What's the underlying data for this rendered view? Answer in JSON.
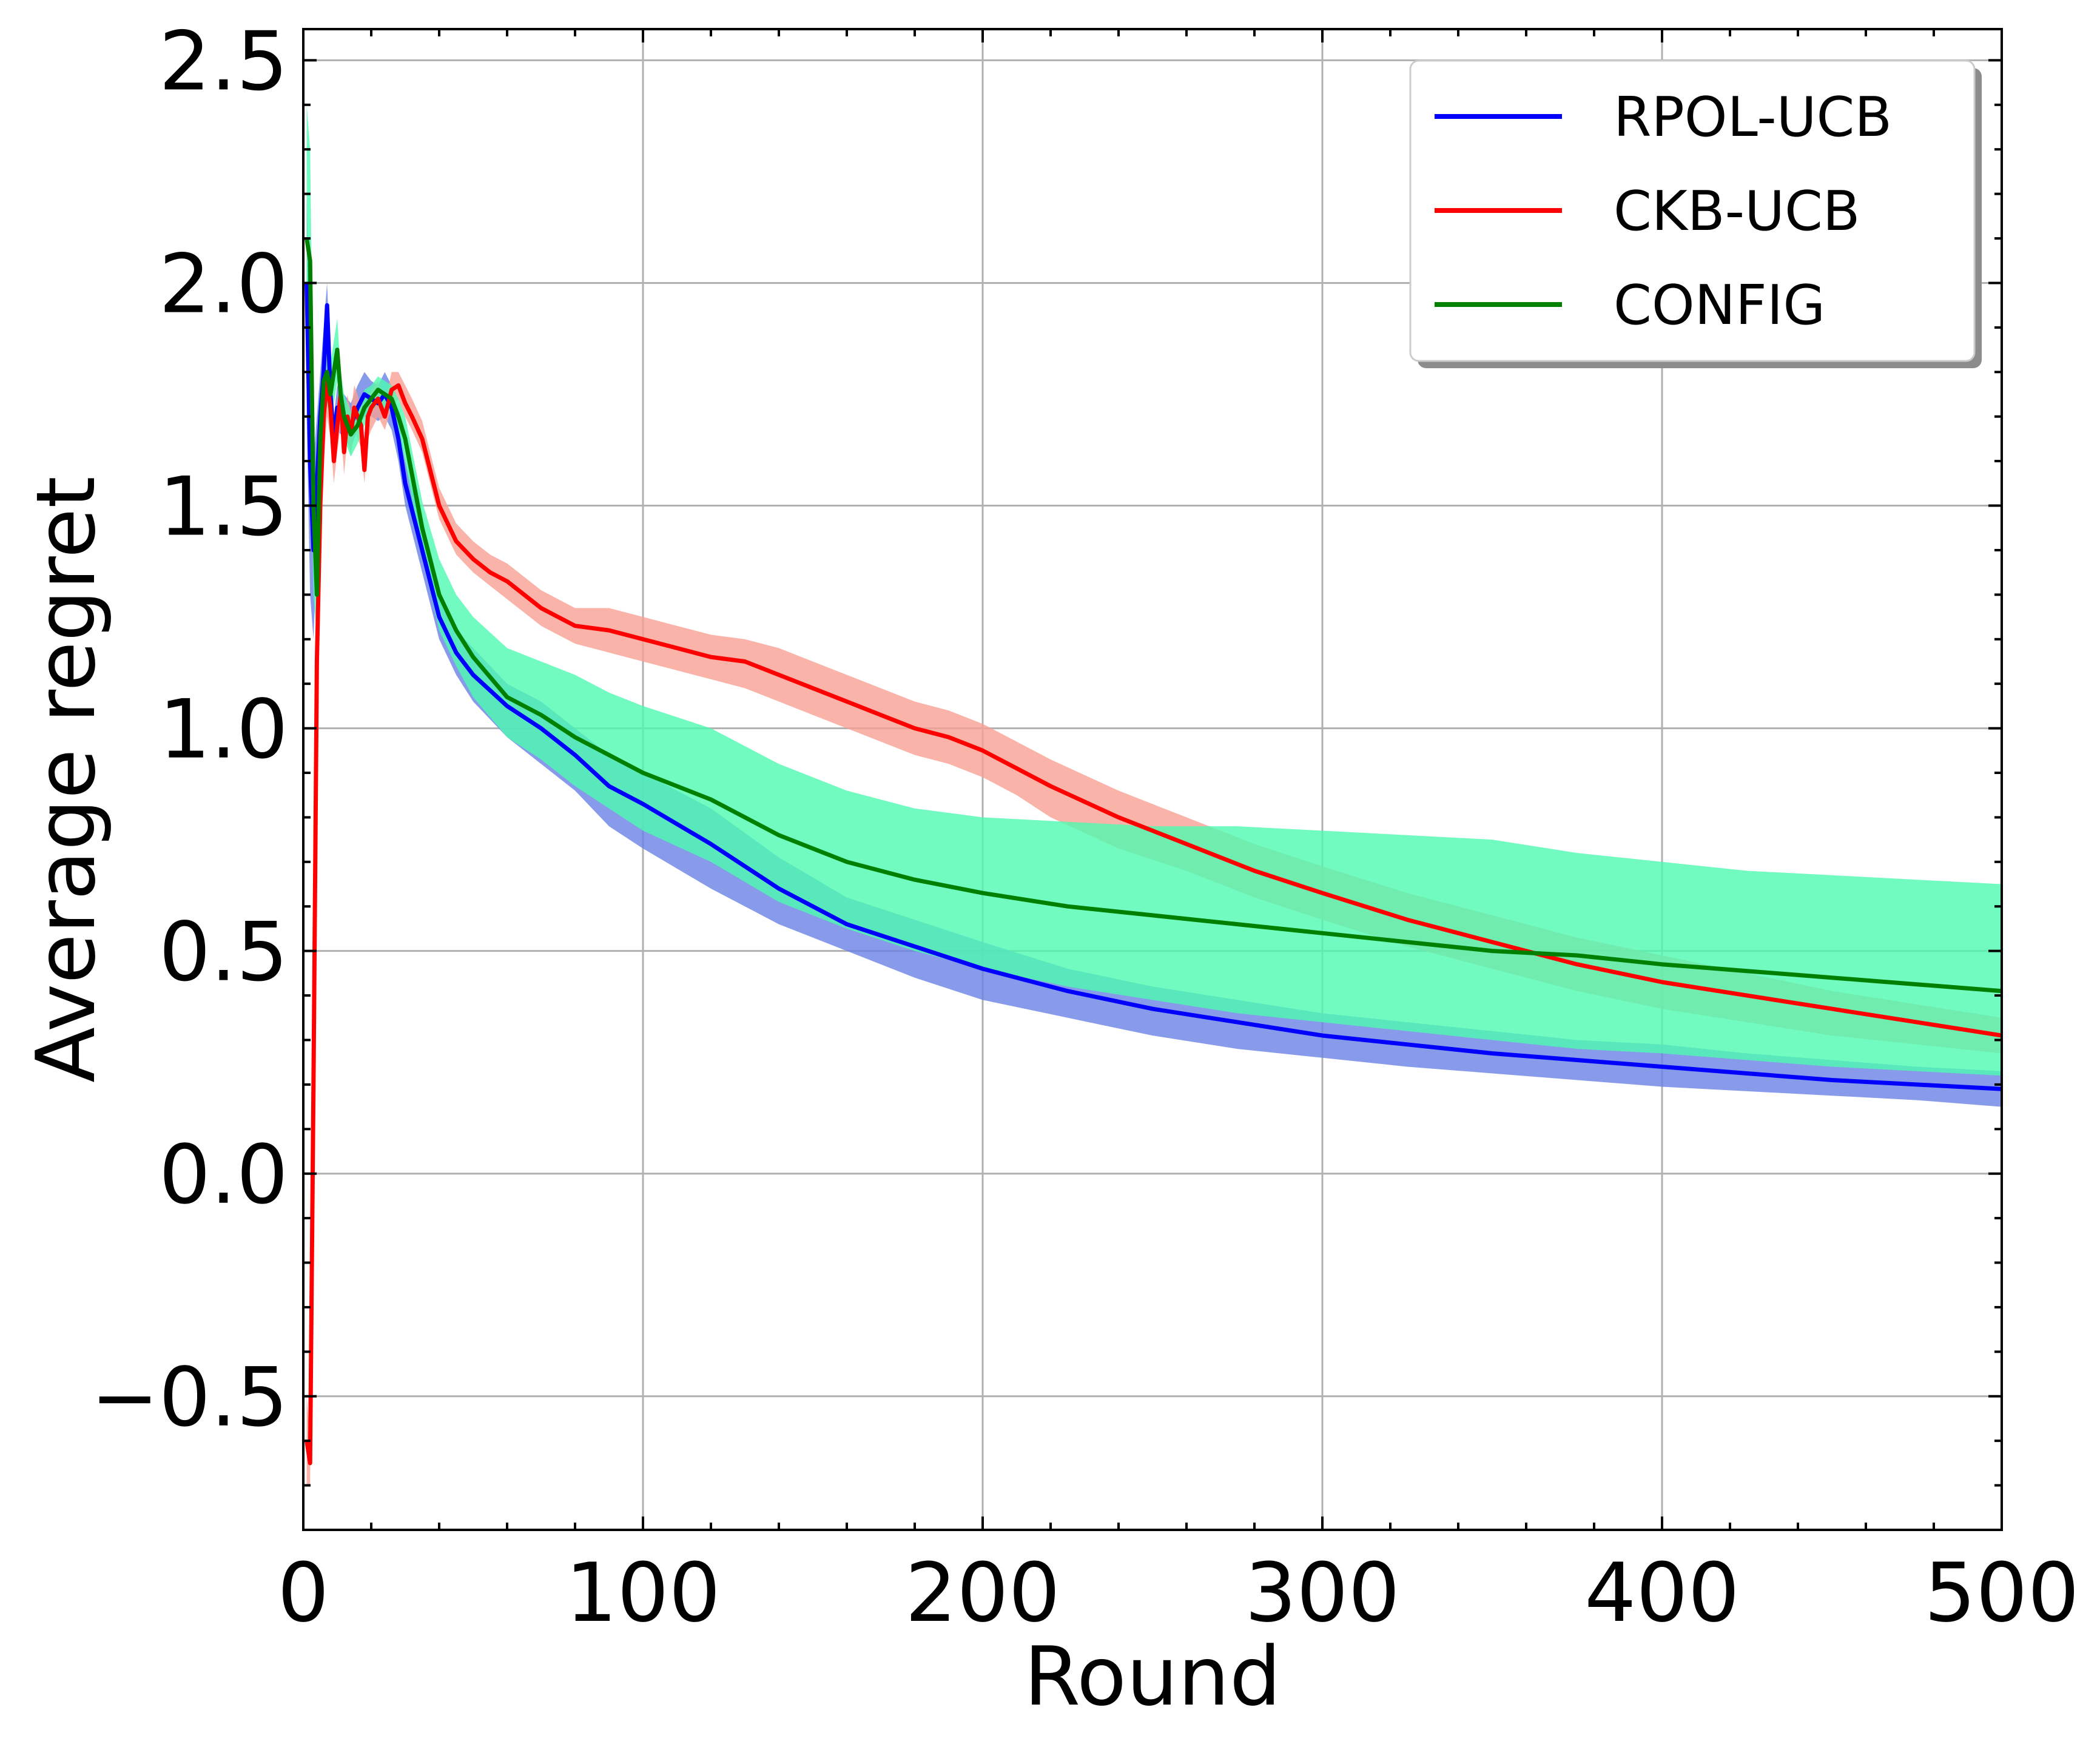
{
  "chart_data": {
    "type": "line",
    "title": "",
    "xlabel": "Round",
    "ylabel": "Average regret",
    "xlim": [
      0,
      500
    ],
    "ylim": [
      -0.8,
      2.57
    ],
    "xticks": [
      0,
      100,
      200,
      300,
      400,
      500
    ],
    "xtick_labels": [
      "0",
      "100",
      "200",
      "300",
      "400",
      "500"
    ],
    "yticks": [
      -0.5,
      0.0,
      0.5,
      1.0,
      1.5,
      2.0,
      2.5
    ],
    "ytick_labels": [
      "−0.5",
      "0.0",
      "0.5",
      "1.0",
      "1.5",
      "2.0",
      "2.5"
    ],
    "grid": true,
    "legend_position": "top-right",
    "series": [
      {
        "name": "RPOL-UCB",
        "color": "#0000ff",
        "band_color": "#6a82e6",
        "x": [
          1,
          2,
          3,
          4,
          5,
          6,
          7,
          8,
          9,
          10,
          12,
          14,
          16,
          18,
          20,
          22,
          24,
          26,
          28,
          30,
          35,
          40,
          45,
          50,
          60,
          70,
          80,
          90,
          100,
          120,
          140,
          160,
          180,
          200,
          225,
          250,
          275,
          300,
          325,
          350,
          375,
          400,
          425,
          450,
          475,
          500
        ],
        "y": [
          2.0,
          1.6,
          1.4,
          1.55,
          1.7,
          1.8,
          1.95,
          1.75,
          1.65,
          1.72,
          1.7,
          1.68,
          1.72,
          1.75,
          1.74,
          1.73,
          1.75,
          1.72,
          1.65,
          1.55,
          1.4,
          1.25,
          1.17,
          1.12,
          1.05,
          1.0,
          0.94,
          0.87,
          0.83,
          0.74,
          0.64,
          0.56,
          0.51,
          0.46,
          0.41,
          0.37,
          0.34,
          0.31,
          0.29,
          0.27,
          0.255,
          0.24,
          0.225,
          0.21,
          0.2,
          0.19
        ],
        "lower": [
          1.7,
          1.3,
          1.2,
          1.4,
          1.6,
          1.7,
          1.85,
          1.68,
          1.6,
          1.67,
          1.65,
          1.63,
          1.67,
          1.7,
          1.7,
          1.69,
          1.7,
          1.67,
          1.6,
          1.5,
          1.35,
          1.2,
          1.12,
          1.06,
          0.98,
          0.92,
          0.86,
          0.78,
          0.73,
          0.64,
          0.56,
          0.5,
          0.44,
          0.39,
          0.35,
          0.31,
          0.28,
          0.26,
          0.24,
          0.225,
          0.21,
          0.195,
          0.185,
          0.175,
          0.165,
          0.15
        ],
        "upper": [
          2.2,
          1.9,
          1.6,
          1.7,
          1.8,
          1.9,
          2.0,
          1.82,
          1.7,
          1.77,
          1.75,
          1.73,
          1.77,
          1.8,
          1.78,
          1.77,
          1.8,
          1.77,
          1.7,
          1.6,
          1.45,
          1.3,
          1.22,
          1.18,
          1.1,
          1.06,
          1.0,
          0.94,
          0.9,
          0.82,
          0.71,
          0.62,
          0.57,
          0.52,
          0.46,
          0.42,
          0.39,
          0.36,
          0.34,
          0.32,
          0.3,
          0.29,
          0.27,
          0.255,
          0.24,
          0.23
        ]
      },
      {
        "name": "CKB-UCB",
        "color": "#ff0000",
        "band_color": "#f9a094",
        "x": [
          1,
          2,
          3,
          4,
          5,
          6,
          7,
          8,
          9,
          10,
          11,
          12,
          13,
          14,
          15,
          16,
          17,
          18,
          19,
          20,
          22,
          24,
          26,
          28,
          30,
          32,
          35,
          40,
          45,
          50,
          55,
          60,
          70,
          80,
          90,
          100,
          110,
          120,
          130,
          140,
          150,
          160,
          170,
          180,
          190,
          200,
          210,
          220,
          240,
          260,
          280,
          300,
          325,
          350,
          375,
          400,
          425,
          450,
          475,
          500
        ],
        "y": [
          -0.6,
          -0.65,
          0.2,
          1.15,
          1.5,
          1.7,
          1.78,
          1.72,
          1.6,
          1.68,
          1.75,
          1.62,
          1.7,
          1.66,
          1.72,
          1.7,
          1.68,
          1.58,
          1.7,
          1.72,
          1.74,
          1.7,
          1.76,
          1.77,
          1.73,
          1.7,
          1.65,
          1.5,
          1.42,
          1.38,
          1.35,
          1.33,
          1.27,
          1.23,
          1.22,
          1.2,
          1.18,
          1.16,
          1.15,
          1.12,
          1.09,
          1.06,
          1.03,
          1.0,
          0.98,
          0.95,
          0.91,
          0.87,
          0.8,
          0.74,
          0.68,
          0.63,
          0.57,
          0.52,
          0.47,
          0.43,
          0.4,
          0.37,
          0.34,
          0.31
        ],
        "lower": [
          -0.7,
          -0.7,
          0.1,
          1.05,
          1.4,
          1.6,
          1.7,
          1.65,
          1.55,
          1.62,
          1.68,
          1.57,
          1.65,
          1.61,
          1.67,
          1.65,
          1.63,
          1.55,
          1.65,
          1.67,
          1.7,
          1.67,
          1.72,
          1.74,
          1.7,
          1.67,
          1.62,
          1.47,
          1.39,
          1.35,
          1.32,
          1.29,
          1.23,
          1.19,
          1.17,
          1.15,
          1.13,
          1.11,
          1.09,
          1.06,
          1.03,
          1.0,
          0.97,
          0.94,
          0.92,
          0.89,
          0.85,
          0.8,
          0.73,
          0.68,
          0.62,
          0.57,
          0.51,
          0.46,
          0.41,
          0.37,
          0.34,
          0.31,
          0.29,
          0.27
        ],
        "upper": [
          -0.5,
          -0.6,
          0.3,
          1.25,
          1.6,
          1.8,
          1.85,
          1.78,
          1.65,
          1.73,
          1.8,
          1.67,
          1.75,
          1.71,
          1.77,
          1.75,
          1.72,
          1.62,
          1.74,
          1.76,
          1.78,
          1.73,
          1.8,
          1.8,
          1.77,
          1.74,
          1.69,
          1.54,
          1.46,
          1.42,
          1.39,
          1.37,
          1.31,
          1.27,
          1.27,
          1.25,
          1.23,
          1.21,
          1.2,
          1.18,
          1.15,
          1.12,
          1.09,
          1.06,
          1.04,
          1.01,
          0.97,
          0.93,
          0.86,
          0.8,
          0.74,
          0.69,
          0.63,
          0.58,
          0.53,
          0.49,
          0.45,
          0.41,
          0.38,
          0.35
        ]
      },
      {
        "name": "CONFIG",
        "color": "#008000",
        "band_color": "#4dfab0",
        "x": [
          1,
          2,
          3,
          4,
          5,
          6,
          7,
          8,
          9,
          10,
          11,
          12,
          14,
          16,
          18,
          20,
          22,
          24,
          26,
          28,
          30,
          35,
          40,
          45,
          50,
          60,
          70,
          80,
          90,
          100,
          120,
          140,
          160,
          180,
          200,
          225,
          250,
          275,
          300,
          325,
          350,
          375,
          400,
          425,
          450,
          475,
          500
        ],
        "y": [
          2.1,
          2.05,
          1.5,
          1.3,
          1.65,
          1.78,
          1.8,
          1.75,
          1.8,
          1.85,
          1.75,
          1.7,
          1.66,
          1.68,
          1.72,
          1.74,
          1.76,
          1.75,
          1.74,
          1.7,
          1.65,
          1.45,
          1.3,
          1.22,
          1.16,
          1.07,
          1.03,
          0.98,
          0.94,
          0.9,
          0.84,
          0.76,
          0.7,
          0.66,
          0.63,
          0.6,
          0.58,
          0.56,
          0.54,
          0.52,
          0.5,
          0.49,
          0.47,
          0.455,
          0.44,
          0.425,
          0.41
        ],
        "lower": [
          1.8,
          1.7,
          1.3,
          1.2,
          1.55,
          1.7,
          1.73,
          1.68,
          1.73,
          1.78,
          1.7,
          1.65,
          1.61,
          1.64,
          1.68,
          1.71,
          1.73,
          1.72,
          1.71,
          1.66,
          1.6,
          1.39,
          1.22,
          1.14,
          1.07,
          0.98,
          0.93,
          0.87,
          0.82,
          0.77,
          0.7,
          0.61,
          0.55,
          0.5,
          0.46,
          0.42,
          0.39,
          0.36,
          0.34,
          0.32,
          0.3,
          0.28,
          0.27,
          0.255,
          0.24,
          0.23,
          0.22
        ],
        "upper": [
          2.4,
          2.3,
          1.7,
          1.45,
          1.75,
          1.86,
          1.87,
          1.82,
          1.87,
          1.92,
          1.8,
          1.75,
          1.71,
          1.72,
          1.76,
          1.77,
          1.79,
          1.78,
          1.77,
          1.74,
          1.7,
          1.51,
          1.38,
          1.3,
          1.25,
          1.18,
          1.15,
          1.12,
          1.08,
          1.05,
          1.0,
          0.92,
          0.86,
          0.82,
          0.8,
          0.79,
          0.78,
          0.78,
          0.77,
          0.76,
          0.75,
          0.72,
          0.7,
          0.68,
          0.67,
          0.66,
          0.65
        ]
      }
    ]
  }
}
